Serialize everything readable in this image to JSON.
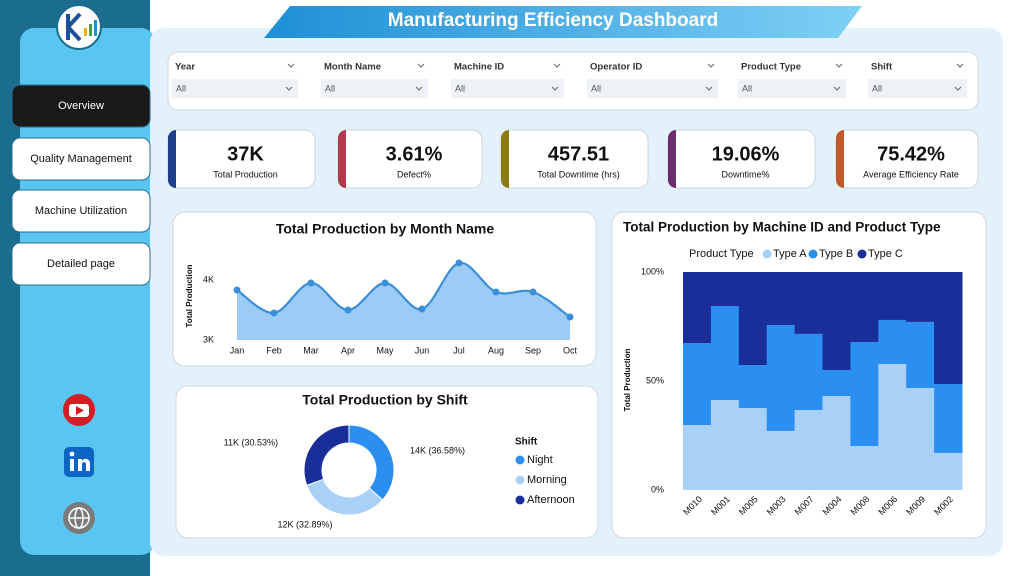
{
  "header": {
    "title": "Manufacturing Efficiency Dashboard"
  },
  "nav": [
    {
      "label": "Overview",
      "active": true
    },
    {
      "label": "Quality Management",
      "active": false
    },
    {
      "label": "Machine Utilization",
      "active": false
    },
    {
      "label": "Detailed page",
      "active": false
    }
  ],
  "filters": [
    {
      "label": "Year",
      "value": "All"
    },
    {
      "label": "Month Name",
      "value": "All"
    },
    {
      "label": "Machine ID",
      "value": "All"
    },
    {
      "label": "Operator ID",
      "value": "All"
    },
    {
      "label": "Product Type",
      "value": "All"
    },
    {
      "label": "Shift",
      "value": "All"
    }
  ],
  "kpis": [
    {
      "value": "37K",
      "label": "Total Production",
      "color": "#1f3f8a"
    },
    {
      "value": "3.61%",
      "label": "Defect%",
      "color": "#b33a4a"
    },
    {
      "value": "457.51",
      "label": "Total Downtime (hrs)",
      "color": "#8c7a12"
    },
    {
      "value": "19.06%",
      "label": "Downtime%",
      "color": "#6b2d6e"
    },
    {
      "value": "75.42%",
      "label": "Average Efficiency Rate",
      "color": "#c2592c"
    }
  ],
  "chart_data": [
    {
      "type": "area",
      "title": "Total Production by Month Name",
      "y_label": "Total Production",
      "categories": [
        "Jan",
        "Feb",
        "Mar",
        "Apr",
        "May",
        "Jun",
        "Jul",
        "Aug",
        "Sep",
        "Oct"
      ],
      "values": [
        3833,
        3450,
        3950,
        3500,
        3950,
        3517,
        4283,
        3800,
        3800,
        3383
      ],
      "color": "#3a8fd8",
      "fill": "#9ccbf5",
      "ylim": [
        3000,
        4400
      ],
      "yticks": [
        {
          "value": 3000,
          "label": "3K"
        },
        {
          "value": 4000,
          "label": "4K"
        }
      ]
    },
    {
      "type": "donut",
      "title": "Total Production by Shift",
      "legend_title": "Shift",
      "categories": [
        "Night",
        "Morning",
        "Afternoon"
      ],
      "values": [
        36.58,
        32.89,
        30.53
      ],
      "value_labels": [
        "14K (36.58%)",
        "12K (32.89%)",
        "11K (30.53%)"
      ],
      "colors": [
        "#2a8ff0",
        "#a9d1f7",
        "#1a2e9a"
      ]
    },
    {
      "type": "stacked-bar-100",
      "title": "Total Production by Machine ID and Product Type",
      "legend_title": "Product Type",
      "y_label": "Total Production",
      "categories": [
        "M010",
        "M001",
        "M005",
        "M003",
        "M007",
        "M004",
        "M008",
        "M006",
        "M009",
        "M002"
      ],
      "series": [
        {
          "name": "Type A",
          "color": "#a9d1f7",
          "values": [
            29.8,
            41.3,
            37.6,
            27.1,
            36.7,
            43.1,
            20.2,
            57.8,
            46.8,
            17.0
          ]
        },
        {
          "name": "Type B",
          "color": "#2a8ff0",
          "values": [
            37.6,
            43.1,
            19.7,
            48.6,
            34.9,
            11.9,
            47.7,
            20.2,
            30.3,
            31.6
          ]
        },
        {
          "name": "Type C",
          "color": "#1a2e9a",
          "values": [
            32.6,
            15.6,
            42.7,
            24.3,
            28.4,
            45.0,
            32.1,
            22.0,
            22.9,
            51.4
          ]
        }
      ],
      "ylim": [
        0,
        100
      ],
      "yticks": [
        {
          "value": 0,
          "label": "0%"
        },
        {
          "value": 50,
          "label": "50%"
        },
        {
          "value": 100,
          "label": "100%"
        }
      ]
    }
  ]
}
